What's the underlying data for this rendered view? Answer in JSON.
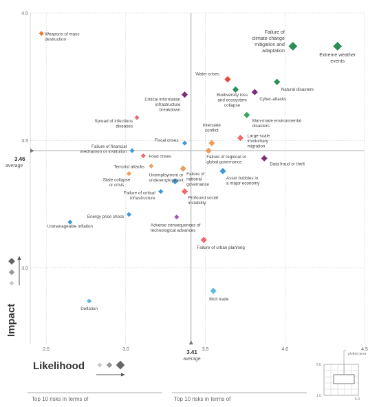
{
  "chart_data": {
    "type": "scatter",
    "xlabel": "Likelihood",
    "ylabel": "Impact",
    "xlim": [
      2.4,
      4.5
    ],
    "ylim": [
      2.7,
      4.0
    ],
    "x_ticks": [
      "2.5",
      "3.0",
      "3.5",
      "4.0",
      "4.5"
    ],
    "y_ticks": [
      "3.0",
      "3.5",
      "4.0"
    ],
    "grid": true,
    "averages": {
      "x": {
        "value": "3.41",
        "label": "average"
      },
      "y": {
        "value": "3.46",
        "label": "average"
      }
    },
    "colors": {
      "economic": "#3c9bd6",
      "environmental": "#2a8f57",
      "geopolitical": "#f08a8a",
      "societal": "#e8a060",
      "technological": "#7b2d7a",
      "extra_red": "#e8453c",
      "extra_green": "#3aa564",
      "extra_orange": "#f07a2a",
      "extra_salmon": "#ee6b6b",
      "extra_purple": "#9a5aa8",
      "extra_lightblue": "#60b8e8"
    },
    "points": [
      {
        "label": "Weapons of mass destruction",
        "x": 2.47,
        "y": 3.92,
        "color": "#f07a2a",
        "size": "s"
      },
      {
        "label": "Failure of climate-change mitigation and adaptation",
        "x": 4.05,
        "y": 3.87,
        "color": "#2a8f57",
        "size": "l"
      },
      {
        "label": "Extreme weather events",
        "x": 4.33,
        "y": 3.87,
        "color": "#2a8f57",
        "size": "l"
      },
      {
        "label": "Water crises",
        "x": 3.64,
        "y": 3.74,
        "color": "#e8453c",
        "size": "m"
      },
      {
        "label": "Biodiversity loss and ecosystem collapse",
        "x": 3.69,
        "y": 3.7,
        "color": "#2a8f57",
        "size": "m"
      },
      {
        "label": "Cyber-attacks",
        "x": 3.81,
        "y": 3.69,
        "color": "#7b2d7a",
        "size": "m"
      },
      {
        "label": "Natural disasters",
        "x": 3.95,
        "y": 3.73,
        "color": "#2a8f57",
        "size": "m"
      },
      {
        "label": "Critical information infrastructure breakdown",
        "x": 3.37,
        "y": 3.68,
        "color": "#7b2d7a",
        "size": "m"
      },
      {
        "label": "Man-made environmental disasters",
        "x": 3.76,
        "y": 3.6,
        "color": "#3aa564",
        "size": "m"
      },
      {
        "label": "Spread of infectious diseases",
        "x": 3.07,
        "y": 3.59,
        "color": "#ee6b6b",
        "size": "s"
      },
      {
        "label": "Interstate conflict",
        "x": 3.54,
        "y": 3.49,
        "color": "#e8a060",
        "size": "m"
      },
      {
        "label": "Fiscal crises",
        "x": 3.37,
        "y": 3.49,
        "color": "#3c9bd6",
        "size": "s"
      },
      {
        "label": "Large-scale involuntary migration",
        "x": 3.72,
        "y": 3.51,
        "color": "#ee6b6b",
        "size": "m"
      },
      {
        "label": "Failure of financial mechanism or institution",
        "x": 3.04,
        "y": 3.46,
        "color": "#3c9bd6",
        "size": "s"
      },
      {
        "label": "Food crises",
        "x": 3.11,
        "y": 3.44,
        "color": "#ee6b6b",
        "size": "s"
      },
      {
        "label": "Failure of regional or global governance",
        "x": 3.52,
        "y": 3.46,
        "color": "#e8a060",
        "size": "m"
      },
      {
        "label": "Data fraud or theft",
        "x": 3.87,
        "y": 3.43,
        "color": "#7b2d7a",
        "size": "m"
      },
      {
        "label": "Terrorist attacks",
        "x": 3.16,
        "y": 3.4,
        "color": "#e8a060",
        "size": "s"
      },
      {
        "label": "Failure of national governance",
        "x": 3.36,
        "y": 3.39,
        "color": "#e8a060",
        "size": "m"
      },
      {
        "label": "State collapse or crisis",
        "x": 3.02,
        "y": 3.37,
        "color": "#e8a060",
        "size": "s"
      },
      {
        "label": "Asset bubbles in a major economy",
        "x": 3.61,
        "y": 3.38,
        "color": "#3c9bd6",
        "size": "m"
      },
      {
        "label": "Unemployment or underemployment",
        "x": 3.31,
        "y": 3.34,
        "color": "#3c9bd6",
        "size": "m"
      },
      {
        "label": "Failure of critical infrastructure",
        "x": 3.22,
        "y": 3.3,
        "color": "#3c9bd6",
        "size": "s"
      },
      {
        "label": "Profound social instability",
        "x": 3.37,
        "y": 3.3,
        "color": "#ee6b6b",
        "size": "m"
      },
      {
        "label": "Energy price shock",
        "x": 3.02,
        "y": 3.21,
        "color": "#3c9bd6",
        "size": "s"
      },
      {
        "label": "Unmanageable inflation",
        "x": 2.65,
        "y": 3.18,
        "color": "#3c9bd6",
        "size": "s"
      },
      {
        "label": "Adverse consequences of technological advances",
        "x": 3.32,
        "y": 3.2,
        "color": "#9a5aa8",
        "size": "s"
      },
      {
        "label": "Failure of urban planning",
        "x": 3.49,
        "y": 3.11,
        "color": "#ee6b6b",
        "size": "m"
      },
      {
        "label": "Illicit trade",
        "x": 3.55,
        "y": 2.91,
        "color": "#60b8e8",
        "size": "m"
      },
      {
        "label": "Deflation",
        "x": 2.77,
        "y": 2.87,
        "color": "#60b8e8",
        "size": "s"
      }
    ]
  },
  "inset": {
    "title": "plotted area",
    "min_label": "1.0",
    "max_label_x": "5.0",
    "max_label_y": "5.0"
  },
  "footer": {
    "left": "Top 10 risks in terms of",
    "right": "Top 10 risks in terms of"
  }
}
